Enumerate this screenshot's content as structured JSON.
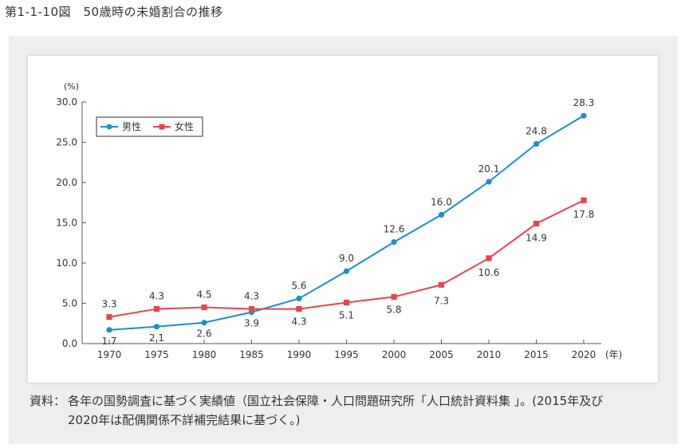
{
  "figure": {
    "title": "第1-1-10図　50歳時の未婚割合の推移"
  },
  "note": {
    "label": "資料：",
    "line1": "各年の国勢調査に基づく実績値（国立社会保障・人口問題研究所「人口統計資料集 」。(2015年及び",
    "line2": "2020年は配偶関係不詳補完結果に基づく。)"
  },
  "chart_data": {
    "type": "line",
    "categories": [
      "1970",
      "1975",
      "1980",
      "1985",
      "1990",
      "1995",
      "2000",
      "2005",
      "2010",
      "2015",
      "2020"
    ],
    "series": [
      {
        "name": "男性",
        "values": [
          1.7,
          2.1,
          2.6,
          3.9,
          5.6,
          9.0,
          12.6,
          16.0,
          20.1,
          24.8,
          28.3
        ],
        "color": "#1d8fc4",
        "marker": "circle"
      },
      {
        "name": "女性",
        "values": [
          3.3,
          4.3,
          4.5,
          4.3,
          4.3,
          5.1,
          5.8,
          7.3,
          10.6,
          14.9,
          17.8
        ],
        "color": "#e8434f",
        "marker": "square"
      }
    ],
    "data_labels": {
      "男性": [
        "1.7",
        "2.1",
        "2.6",
        "3.9",
        "5.6",
        "9.0",
        "12.6",
        "16.0",
        "20.1",
        "24.8",
        "28.3"
      ],
      "女性": [
        "3.3",
        "4.3",
        "4.5",
        "4.3",
        "4.3",
        "5.1",
        "5.8",
        "7.3",
        "10.6",
        "14.9",
        "17.8"
      ]
    },
    "yticks": [
      "0.0",
      "5.0",
      "10.0",
      "15.0",
      "20.0",
      "25.0",
      "30.0"
    ],
    "ylim": [
      0,
      30
    ],
    "yunit": "(%)",
    "xunit": "(年)",
    "legend_position": "top-left",
    "grid": false
  }
}
